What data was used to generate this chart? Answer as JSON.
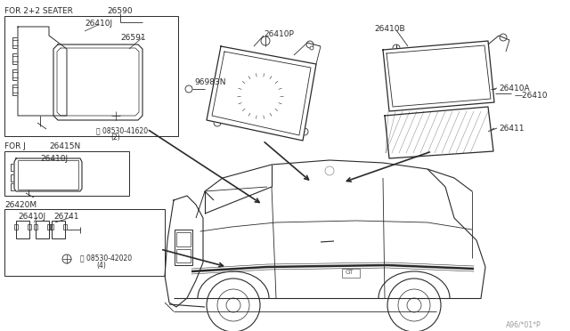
{
  "bg_color": "#ffffff",
  "line_color": "#2a2a2a",
  "gray": "#888888",
  "light_line": "#bbbbbb",
  "fig_width": 6.4,
  "fig_height": 3.72,
  "dpi": 100,
  "part_watermark": "A96/*01*P",
  "labels": {
    "for_2p2_seater": "FOR 2+2 SEATER",
    "for_j": "FOR J",
    "p26590": "26590",
    "p26410j": "26410J",
    "p26591": "26591",
    "p08530_41620": "08530-41620",
    "p_2": "(2)",
    "p26415n": "26415N",
    "p26410j_j": "26410J",
    "p26420m": "26420M",
    "p26410j_m": "26410J",
    "p26741": "26741",
    "p08530_42020": "08530-42020",
    "p_4": "(4)",
    "p96983n": "96983N",
    "p26410p": "26410P",
    "p26410b": "26410B",
    "p26410a": "26410A",
    "p26410": "26410",
    "p26411": "26411"
  }
}
